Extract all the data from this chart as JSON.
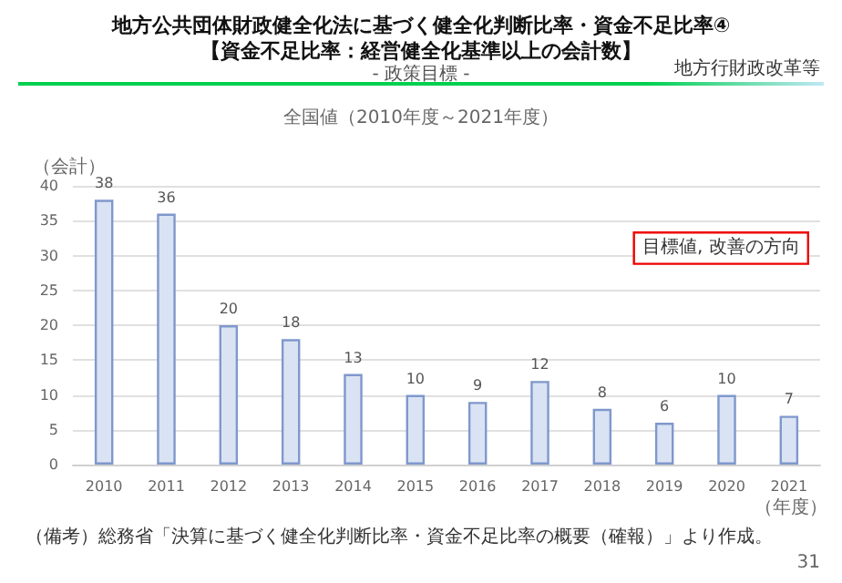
{
  "chart_data": {
    "type": "bar",
    "title": "地方公共団体財政健全化法に基づく健全化判断比率・資金不足比率④\n【資金不足比率：経営健全化基準以上の会計数】",
    "subtitle": "- 政策目標 -",
    "xlabel": "（年度）",
    "ylabel": "（会計）",
    "annotations": [
      "地方行財政改革等",
      "全国値（2010年度～2021年度）",
      "目標値, 改善の方向",
      "（備考）総務省「決算に基づく健全化判断比率・資金不足比率の概要（確報）」より作成。",
      "31"
    ],
    "categories": [
      "2010",
      "2011",
      "2012",
      "2013",
      "2014",
      "2015",
      "2016",
      "2017",
      "2018",
      "2019",
      "2020",
      "2021"
    ],
    "values": [
      38,
      36,
      20,
      18,
      13,
      10,
      9,
      12,
      8,
      6,
      10,
      7
    ],
    "color": "#dae3f3",
    "ylim": [
      0,
      40
    ],
    "yticks": [
      0,
      5,
      10,
      15,
      20,
      25,
      30,
      35,
      40
    ],
    "grid": "y",
    "data_labels": true
  }
}
